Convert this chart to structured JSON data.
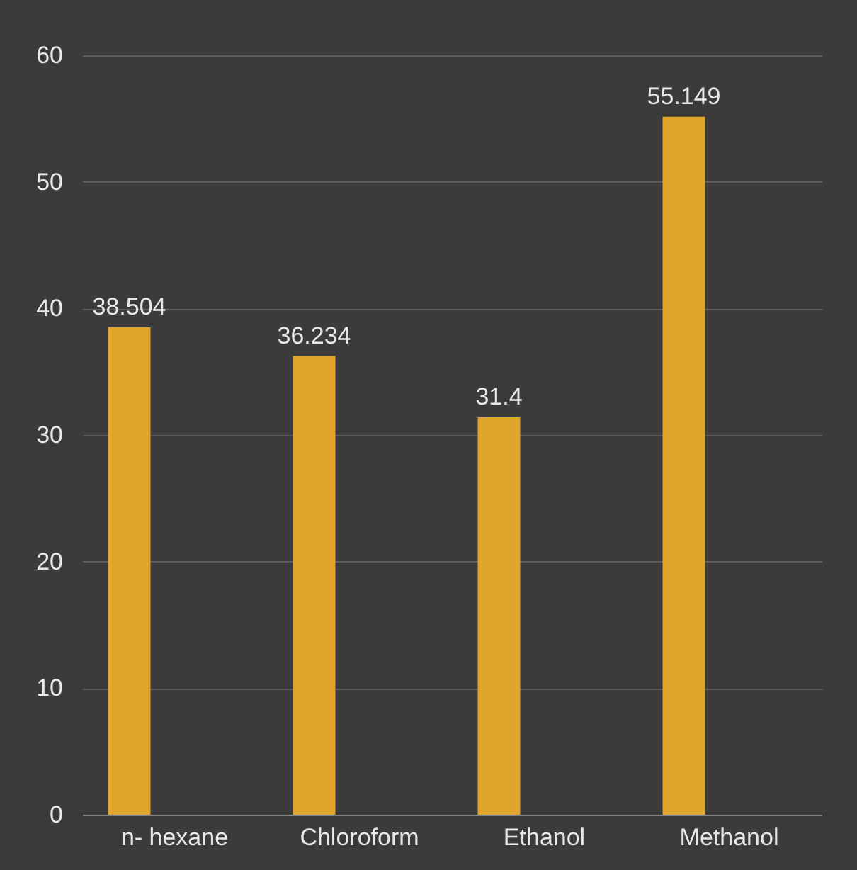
{
  "chart_data": {
    "type": "bar",
    "categories": [
      "n- hexane",
      "Chloroform",
      "Ethanol",
      "Methanol"
    ],
    "values": [
      38.504,
      36.234,
      31.4,
      55.149
    ],
    "color": "#e0a52a",
    "ylim": [
      0,
      60
    ],
    "yticks": [
      0,
      10,
      20,
      30,
      40,
      50,
      60
    ],
    "grid": "y",
    "data_labels": true
  }
}
